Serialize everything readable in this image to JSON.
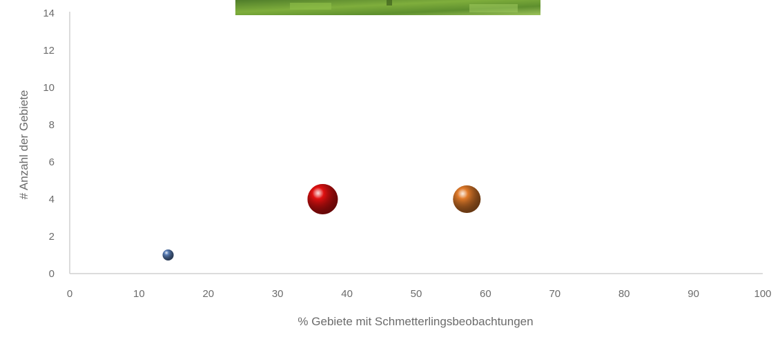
{
  "chart_data": {
    "type": "scatter",
    "title": "",
    "xlabel": "% Gebiete mit Schmetterlingsbeobachtungen",
    "ylabel": "# Anzahl der Gebiete",
    "xlim": [
      0,
      100
    ],
    "ylim": [
      0,
      14
    ],
    "x_ticks": [
      0,
      10,
      20,
      30,
      40,
      50,
      60,
      70,
      80,
      90,
      100
    ],
    "y_ticks": [
      0,
      2,
      4,
      6,
      8,
      10,
      12,
      14
    ],
    "grid": false,
    "legend": "none",
    "points": [
      {
        "x": 14.2,
        "y": 1,
        "size": "small",
        "color": "#5b7fb8"
      },
      {
        "x": 36.5,
        "y": 4,
        "size": "large",
        "color": "#e01010"
      },
      {
        "x": 57.3,
        "y": 4,
        "size": "medium",
        "color": "#e07a2a"
      }
    ]
  },
  "decor": {
    "photo_strip": "green-foliage-photo"
  }
}
